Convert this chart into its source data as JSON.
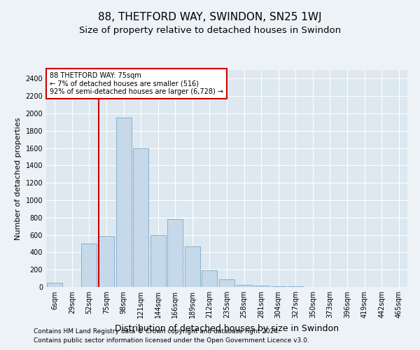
{
  "title": "88, THETFORD WAY, SWINDON, SN25 1WJ",
  "subtitle": "Size of property relative to detached houses in Swindon",
  "xlabel": "Distribution of detached houses by size in Swindon",
  "ylabel": "Number of detached properties",
  "bins": [
    "6sqm",
    "29sqm",
    "52sqm",
    "75sqm",
    "98sqm",
    "121sqm",
    "144sqm",
    "166sqm",
    "189sqm",
    "212sqm",
    "235sqm",
    "258sqm",
    "281sqm",
    "304sqm",
    "327sqm",
    "350sqm",
    "373sqm",
    "396sqm",
    "419sqm",
    "442sqm",
    "465sqm"
  ],
  "values": [
    50,
    0,
    500,
    590,
    1950,
    1600,
    600,
    780,
    470,
    195,
    85,
    28,
    20,
    12,
    5,
    3,
    2,
    1,
    1,
    0,
    0
  ],
  "bar_color": "#c5d9ea",
  "bar_edge_color": "#7aaac8",
  "red_line_index": 3,
  "red_line_color": "#cc0000",
  "ylim": [
    0,
    2500
  ],
  "yticks": [
    0,
    200,
    400,
    600,
    800,
    1000,
    1200,
    1400,
    1600,
    1800,
    2000,
    2200,
    2400
  ],
  "annotation_text": "88 THETFORD WAY: 75sqm\n← 7% of detached houses are smaller (516)\n92% of semi-detached houses are larger (6,728) →",
  "annotation_box_facecolor": "#ffffff",
  "annotation_box_edgecolor": "#cc0000",
  "footer1": "Contains HM Land Registry data © Crown copyright and database right 2024.",
  "footer2": "Contains public sector information licensed under the Open Government Licence v3.0.",
  "bg_color": "#edf2f7",
  "plot_bg_color": "#dde8f0",
  "grid_color": "#ffffff",
  "title_fontsize": 11,
  "subtitle_fontsize": 9.5,
  "xlabel_fontsize": 9,
  "ylabel_fontsize": 8,
  "tick_fontsize": 7,
  "annotation_fontsize": 7,
  "footer_fontsize": 6.5
}
